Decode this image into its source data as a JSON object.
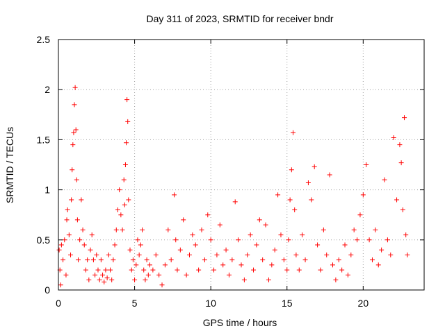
{
  "chart_data": {
    "type": "scatter",
    "marker": "plus",
    "title": "Day 311 of 2023, SRMTID for receiver bndr",
    "xlabel": "GPS time / hours",
    "ylabel": "SRMTID / TECUs",
    "xlim": [
      0,
      24
    ],
    "ylim": [
      0,
      2.5
    ],
    "xticks": [
      0,
      5,
      10,
      15,
      20
    ],
    "xtick_labels": [
      "0",
      "5",
      "10",
      "15",
      "20"
    ],
    "yticks": [
      0,
      0.5,
      1,
      1.5,
      2,
      2.5
    ],
    "ytick_labels": [
      "0",
      "0.5",
      "1",
      "1.5",
      "2",
      "2.5"
    ],
    "grid": true,
    "colors": {
      "points": "#ff0000",
      "grid": "#a0a0a0",
      "axes": "#000000"
    },
    "series": [
      {
        "name": "SRMTID",
        "points": [
          [
            0.05,
            0.4
          ],
          [
            0.1,
            0.2
          ],
          [
            0.15,
            0.05
          ],
          [
            0.2,
            0.45
          ],
          [
            0.3,
            0.3
          ],
          [
            0.4,
            0.5
          ],
          [
            0.5,
            0.15
          ],
          [
            0.55,
            0.7
          ],
          [
            0.6,
            0.8
          ],
          [
            0.7,
            0.55
          ],
          [
            0.8,
            0.35
          ],
          [
            0.85,
            0.9
          ],
          [
            0.9,
            1.2
          ],
          [
            0.95,
            1.45
          ],
          [
            1.0,
            1.57
          ],
          [
            1.05,
            1.85
          ],
          [
            1.1,
            2.02
          ],
          [
            1.15,
            1.6
          ],
          [
            1.2,
            1.1
          ],
          [
            1.25,
            0.7
          ],
          [
            1.3,
            0.3
          ],
          [
            1.4,
            0.5
          ],
          [
            1.5,
            0.9
          ],
          [
            1.6,
            0.6
          ],
          [
            1.7,
            0.45
          ],
          [
            1.8,
            0.2
          ],
          [
            1.9,
            0.3
          ],
          [
            2.0,
            0.1
          ],
          [
            2.1,
            0.4
          ],
          [
            2.2,
            0.55
          ],
          [
            2.3,
            0.3
          ],
          [
            2.4,
            0.15
          ],
          [
            2.5,
            0.35
          ],
          [
            2.6,
            0.2
          ],
          [
            2.7,
            0.1
          ],
          [
            2.8,
            0.3
          ],
          [
            2.9,
            0.15
          ],
          [
            3.0,
            0.08
          ],
          [
            3.1,
            0.2
          ],
          [
            3.2,
            0.12
          ],
          [
            3.3,
            0.35
          ],
          [
            3.4,
            0.2
          ],
          [
            3.5,
            0.1
          ],
          [
            3.6,
            0.3
          ],
          [
            3.7,
            0.45
          ],
          [
            3.8,
            0.6
          ],
          [
            3.9,
            0.8
          ],
          [
            4.0,
            1.0
          ],
          [
            4.1,
            0.75
          ],
          [
            4.2,
            0.6
          ],
          [
            4.3,
            1.1
          ],
          [
            4.35,
            0.85
          ],
          [
            4.4,
            1.25
          ],
          [
            4.45,
            1.47
          ],
          [
            4.5,
            1.9
          ],
          [
            4.55,
            1.68
          ],
          [
            4.6,
            0.9
          ],
          [
            4.7,
            0.4
          ],
          [
            4.8,
            0.2
          ],
          [
            4.9,
            0.3
          ],
          [
            5.0,
            0.1
          ],
          [
            5.1,
            0.25
          ],
          [
            5.2,
            0.5
          ],
          [
            5.3,
            0.35
          ],
          [
            5.4,
            0.45
          ],
          [
            5.5,
            0.6
          ],
          [
            5.6,
            0.2
          ],
          [
            5.7,
            0.1
          ],
          [
            5.8,
            0.3
          ],
          [
            5.9,
            0.15
          ],
          [
            6.0,
            0.25
          ],
          [
            6.2,
            0.2
          ],
          [
            6.4,
            0.35
          ],
          [
            6.6,
            0.15
          ],
          [
            6.8,
            0.05
          ],
          [
            7.0,
            0.25
          ],
          [
            7.2,
            0.6
          ],
          [
            7.4,
            0.3
          ],
          [
            7.6,
            0.95
          ],
          [
            7.7,
            0.5
          ],
          [
            7.8,
            0.2
          ],
          [
            8.0,
            0.4
          ],
          [
            8.2,
            0.7
          ],
          [
            8.4,
            0.15
          ],
          [
            8.6,
            0.35
          ],
          [
            8.8,
            0.55
          ],
          [
            9.0,
            0.45
          ],
          [
            9.2,
            0.2
          ],
          [
            9.4,
            0.6
          ],
          [
            9.6,
            0.3
          ],
          [
            9.8,
            0.75
          ],
          [
            10.0,
            0.5
          ],
          [
            10.2,
            0.2
          ],
          [
            10.4,
            0.35
          ],
          [
            10.6,
            0.65
          ],
          [
            10.8,
            0.25
          ],
          [
            11.0,
            0.4
          ],
          [
            11.2,
            0.15
          ],
          [
            11.4,
            0.3
          ],
          [
            11.6,
            0.88
          ],
          [
            11.8,
            0.5
          ],
          [
            12.0,
            0.25
          ],
          [
            12.2,
            0.1
          ],
          [
            12.4,
            0.35
          ],
          [
            12.6,
            0.55
          ],
          [
            12.8,
            0.2
          ],
          [
            13.0,
            0.45
          ],
          [
            13.2,
            0.7
          ],
          [
            13.4,
            0.3
          ],
          [
            13.6,
            0.65
          ],
          [
            13.8,
            0.1
          ],
          [
            14.0,
            0.25
          ],
          [
            14.2,
            0.4
          ],
          [
            14.4,
            0.95
          ],
          [
            14.6,
            0.55
          ],
          [
            14.8,
            0.3
          ],
          [
            15.0,
            0.2
          ],
          [
            15.1,
            0.5
          ],
          [
            15.2,
            0.9
          ],
          [
            15.3,
            1.2
          ],
          [
            15.4,
            1.57
          ],
          [
            15.5,
            0.8
          ],
          [
            15.6,
            0.35
          ],
          [
            15.8,
            0.2
          ],
          [
            16.0,
            0.55
          ],
          [
            16.2,
            0.3
          ],
          [
            16.4,
            1.07
          ],
          [
            16.6,
            0.9
          ],
          [
            16.8,
            1.23
          ],
          [
            17.0,
            0.45
          ],
          [
            17.2,
            0.2
          ],
          [
            17.4,
            0.6
          ],
          [
            17.6,
            0.35
          ],
          [
            17.8,
            1.15
          ],
          [
            18.0,
            0.25
          ],
          [
            18.2,
            0.1
          ],
          [
            18.4,
            0.3
          ],
          [
            18.6,
            0.2
          ],
          [
            18.8,
            0.45
          ],
          [
            19.0,
            0.15
          ],
          [
            19.2,
            0.35
          ],
          [
            19.4,
            0.6
          ],
          [
            19.6,
            0.5
          ],
          [
            19.8,
            0.75
          ],
          [
            20.0,
            0.95
          ],
          [
            20.2,
            1.25
          ],
          [
            20.4,
            0.5
          ],
          [
            20.6,
            0.3
          ],
          [
            20.8,
            0.6
          ],
          [
            21.0,
            0.25
          ],
          [
            21.2,
            0.4
          ],
          [
            21.4,
            1.1
          ],
          [
            21.6,
            0.5
          ],
          [
            21.8,
            0.35
          ],
          [
            22.0,
            1.52
          ],
          [
            22.2,
            0.9
          ],
          [
            22.4,
            1.45
          ],
          [
            22.5,
            1.27
          ],
          [
            22.6,
            0.8
          ],
          [
            22.7,
            1.72
          ],
          [
            22.8,
            0.55
          ],
          [
            22.9,
            0.35
          ]
        ]
      }
    ]
  }
}
